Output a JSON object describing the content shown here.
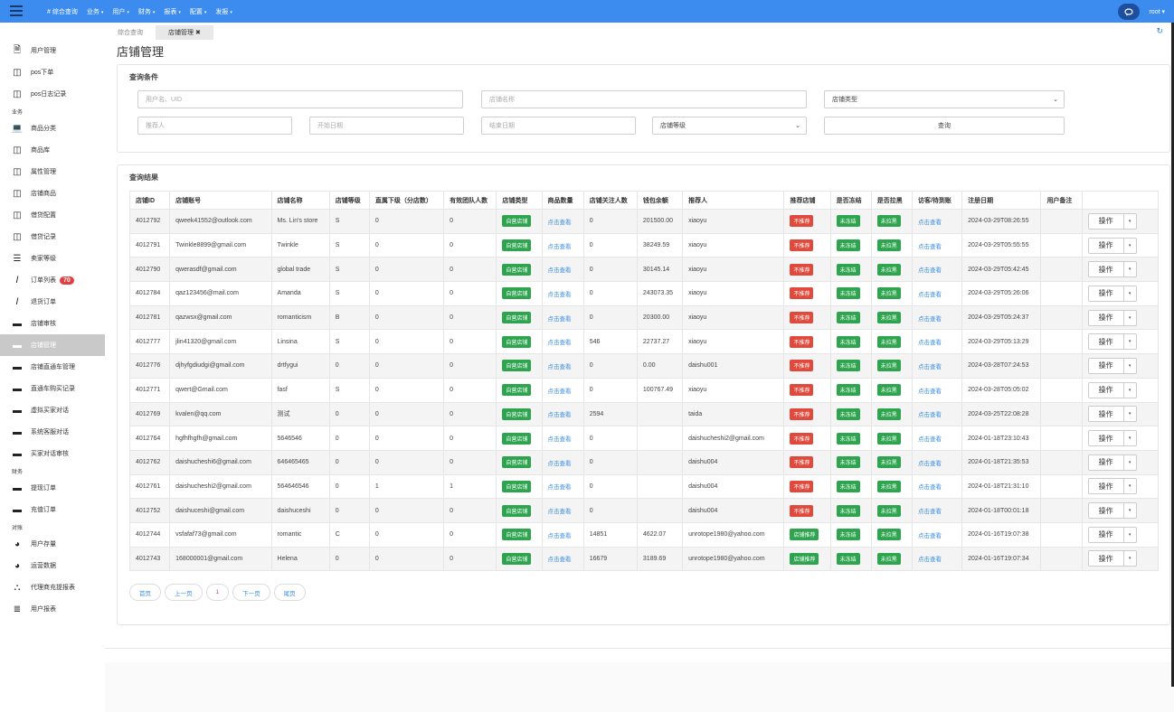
{
  "topbar": {
    "nav": [
      {
        "label": "# 综合查询",
        "caret": false
      },
      {
        "label": "业务",
        "caret": true
      },
      {
        "label": "用户",
        "caret": true
      },
      {
        "label": "财务",
        "caret": true
      },
      {
        "label": "报表",
        "caret": true
      },
      {
        "label": "配置",
        "caret": true
      },
      {
        "label": "发报",
        "caret": true
      }
    ],
    "user": "root"
  },
  "sidebar": [
    {
      "type": "item",
      "label": "用户管理",
      "icon": "file-icon"
    },
    {
      "type": "item",
      "label": "pos下单",
      "icon": "columns-icon"
    },
    {
      "type": "item",
      "label": "pos日志记录",
      "icon": "columns-icon"
    },
    {
      "type": "group",
      "label": "业务"
    },
    {
      "type": "item",
      "label": "商品分类",
      "icon": "laptop-icon"
    },
    {
      "type": "item",
      "label": "商品库",
      "icon": "columns-icon"
    },
    {
      "type": "item",
      "label": "属性管理",
      "icon": "columns-icon"
    },
    {
      "type": "item",
      "label": "店铺商品",
      "icon": "columns-icon"
    },
    {
      "type": "item",
      "label": "借贷配置",
      "icon": "columns-icon"
    },
    {
      "type": "item",
      "label": "借贷记录",
      "icon": "columns-icon"
    },
    {
      "type": "item",
      "label": "卖家等级",
      "icon": "list-icon"
    },
    {
      "type": "item",
      "label": "订单列表",
      "icon": "italic-icon",
      "badge": "70"
    },
    {
      "type": "item",
      "label": "退货订单",
      "icon": "italic-icon"
    },
    {
      "type": "item",
      "label": "店铺审核",
      "icon": "card-icon"
    },
    {
      "type": "item",
      "label": "店铺管理",
      "icon": "card-icon",
      "active": true
    },
    {
      "type": "item",
      "label": "店铺直通车管理",
      "icon": "card-icon"
    },
    {
      "type": "item",
      "label": "直通车购买记录",
      "icon": "card-icon"
    },
    {
      "type": "item",
      "label": "虚拟买家对话",
      "icon": "card-icon"
    },
    {
      "type": "item",
      "label": "系统客服对话",
      "icon": "card-icon"
    },
    {
      "type": "item",
      "label": "买家对话审核",
      "icon": "card-icon"
    },
    {
      "type": "group",
      "label": "财务"
    },
    {
      "type": "item",
      "label": "提现订单",
      "icon": "card-icon"
    },
    {
      "type": "item",
      "label": "充值订单",
      "icon": "card-icon"
    },
    {
      "type": "group",
      "label": "对账"
    },
    {
      "type": "item",
      "label": "用户存量",
      "icon": "pie-icon"
    },
    {
      "type": "item",
      "label": "运营数据",
      "icon": "pie-icon"
    },
    {
      "type": "item",
      "label": "代理商充提报表",
      "icon": "sitemap-icon"
    },
    {
      "type": "item",
      "label": "用户报表",
      "icon": "align-icon"
    }
  ],
  "tabs": [
    "综合查询",
    "店铺管理 ✖"
  ],
  "page_title": "店铺管理",
  "query": {
    "title": "查询条件",
    "user_placeholder": "用户名、UID",
    "shop_name_placeholder": "店铺名称",
    "shop_type_select": "店铺类型",
    "referrer_placeholder": "推荐人",
    "start_date_placeholder": "开始日期",
    "end_date_placeholder": "结束日期",
    "shop_level_select": "店铺等级",
    "query_button": "查询"
  },
  "results": {
    "title": "查询结果",
    "columns": [
      "店铺ID",
      "店铺账号",
      "店铺名称",
      "店铺等级",
      "直属下级（分店数）",
      "有效团队人数",
      "店铺类型",
      "商品数量",
      "店铺关注人数",
      "钱包余额",
      "推荐人",
      "推荐店铺",
      "是否冻结",
      "是否拉黑",
      "访客/待到账",
      "注册日期",
      "用户备注",
      ""
    ],
    "op_label": "操作",
    "rows": [
      [
        "4012792",
        "qweek41552@outlook.com",
        "Ms. Lin's store",
        "S",
        "0",
        "0",
        "自营店铺",
        "点击查看",
        "0",
        "201500.00",
        "xiaoyu",
        "不推荐",
        "未冻结",
        "未拉黑",
        "点击查看",
        "2024-03-29T08:26:55",
        ""
      ],
      [
        "4012791",
        "Twinkle8899@gmail.com",
        "Twinkle",
        "S",
        "0",
        "0",
        "自营店铺",
        "点击查看",
        "0",
        "38249.59",
        "xiaoyu",
        "不推荐",
        "未冻结",
        "未拉黑",
        "点击查看",
        "2024-03-29T05:55:55",
        ""
      ],
      [
        "4012790",
        "qwerasdf@gmail.com",
        "global trade",
        "S",
        "0",
        "0",
        "自营店铺",
        "点击查看",
        "0",
        "30145.14",
        "xiaoyu",
        "不推荐",
        "未冻结",
        "未拉黑",
        "点击查看",
        "2024-03-29T05:42:45",
        ""
      ],
      [
        "4012784",
        "qaz123456@mail.com",
        "Amanda",
        "S",
        "0",
        "0",
        "自营店铺",
        "点击查看",
        "0",
        "243073.35",
        "xiaoyu",
        "不推荐",
        "未冻结",
        "未拉黑",
        "点击查看",
        "2024-03-29T05:26:06",
        ""
      ],
      [
        "4012781",
        "qazwsx@gmail.com",
        "romanticism",
        "B",
        "0",
        "0",
        "自营店铺",
        "点击查看",
        "0",
        "20300.00",
        "xiaoyu",
        "不推荐",
        "未冻结",
        "未拉黑",
        "点击查看",
        "2024-03-29T05:24:37",
        ""
      ],
      [
        "4012777",
        "jlin41320@gmail.com",
        "Linsina",
        "S",
        "0",
        "0",
        "自营店铺",
        "点击查看",
        "546",
        "22737.27",
        "xiaoyu",
        "不推荐",
        "未冻结",
        "未拉黑",
        "点击查看",
        "2024-03-29T05:13:29",
        ""
      ],
      [
        "4012776",
        "djhyfgdiudgi@gmail.com",
        "drtfygui",
        "0",
        "0",
        "0",
        "自营店铺",
        "点击查看",
        "0",
        "0.00",
        "daishu001",
        "不推荐",
        "未冻结",
        "未拉黑",
        "点击查看",
        "2024-03-28T07:24:53",
        ""
      ],
      [
        "4012771",
        "qwert@Gmail.com",
        "fasf",
        "S",
        "0",
        "0",
        "自营店铺",
        "点击查看",
        "0",
        "100767.49",
        "xiaoyu",
        "不推荐",
        "未冻结",
        "未拉黑",
        "点击查看",
        "2024-03-28T05:05:02",
        ""
      ],
      [
        "4012769",
        "kvalen@qq.com",
        "测试",
        "0",
        "0",
        "0",
        "自营店铺",
        "点击查看",
        "2594",
        "",
        "taida",
        "不推荐",
        "未冻结",
        "未拉黑",
        "点击查看",
        "2024-03-25T22:08:28",
        ""
      ],
      [
        "4012764",
        "hgfhfhgfh@gmail.com",
        "5646546",
        "0",
        "0",
        "0",
        "自营店铺",
        "点击查看",
        "0",
        "",
        "daishucheshi2@gmail.com",
        "不推荐",
        "未冻结",
        "未拉黑",
        "点击查看",
        "2024-01-18T23:10:43",
        ""
      ],
      [
        "4012762",
        "daishucheshi6@gmail.com",
        "646465465",
        "0",
        "0",
        "0",
        "自营店铺",
        "点击查看",
        "0",
        "",
        "daishu004",
        "不推荐",
        "未冻结",
        "未拉黑",
        "点击查看",
        "2024-01-18T21:35:53",
        ""
      ],
      [
        "4012761",
        "daishucheshi2@gmail.com",
        "564646546",
        "0",
        "1",
        "1",
        "自营店铺",
        "点击查看",
        "0",
        "",
        "daishu004",
        "不推荐",
        "未冻结",
        "未拉黑",
        "点击查看",
        "2024-01-18T21:31:10",
        ""
      ],
      [
        "4012752",
        "daishuceshi@gmail.com",
        "daishuceshi",
        "0",
        "0",
        "0",
        "自营店铺",
        "点击查看",
        "0",
        "",
        "daishu004",
        "不推荐",
        "未冻结",
        "未拉黑",
        "点击查看",
        "2024-01-18T00:01:18",
        ""
      ],
      [
        "4012744",
        "vsfafaf73@gmail.com",
        "romantic",
        "C",
        "0",
        "0",
        "自营店铺",
        "点击查看",
        "14851",
        "4622.07",
        "unrotope1980@yahoo.com",
        "店铺推荐",
        "未冻结",
        "未拉黑",
        "点击查看",
        "2024-01-16T19:07:38",
        ""
      ],
      [
        "4012743",
        "168000001@gmail.com",
        "Helena",
        "0",
        "0",
        "0",
        "自营店铺",
        "点击查看",
        "16679",
        "3189.69",
        "unrotope1980@yahoo.com",
        "店铺推荐",
        "未冻结",
        "未拉黑",
        "点击查看",
        "2024-01-16T19:07:34",
        ""
      ]
    ]
  },
  "pager": [
    "首页",
    "上一页",
    "1",
    "下一页",
    "尾页"
  ],
  "colors": {
    "topbar": "#3c8cf0",
    "tag_green": "#2ea44f",
    "tag_red": "#e04a3c",
    "link": "#3a8ee6",
    "badge": "#e04040"
  }
}
